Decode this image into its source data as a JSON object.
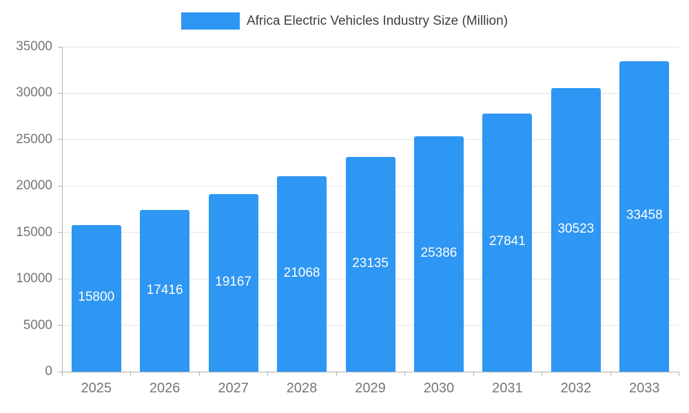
{
  "legend": {
    "label": "Africa Electric Vehicles Industry Size (Million)"
  },
  "chart_data": {
    "type": "bar",
    "title": "Africa Electric Vehicles Industry Size (Million)",
    "xlabel": "",
    "ylabel": "",
    "categories": [
      "2025",
      "2026",
      "2027",
      "2028",
      "2029",
      "2030",
      "2031",
      "2032",
      "2033"
    ],
    "values": [
      15800,
      17416,
      19167,
      21068,
      23135,
      25386,
      27841,
      30523,
      33458
    ],
    "ylim": [
      0,
      35000
    ],
    "yticks": [
      0,
      5000,
      10000,
      15000,
      20000,
      25000,
      30000,
      35000
    ],
    "grid": true,
    "legend_position": "top-center",
    "bar_color": "#2E96F3",
    "value_label_color": "#FFFFFF",
    "axis_label_color": "#757575",
    "gridline_color": "#E4E4E4",
    "axis_line_color": "#B0B0B0",
    "title_color": "#3E3E3E"
  }
}
